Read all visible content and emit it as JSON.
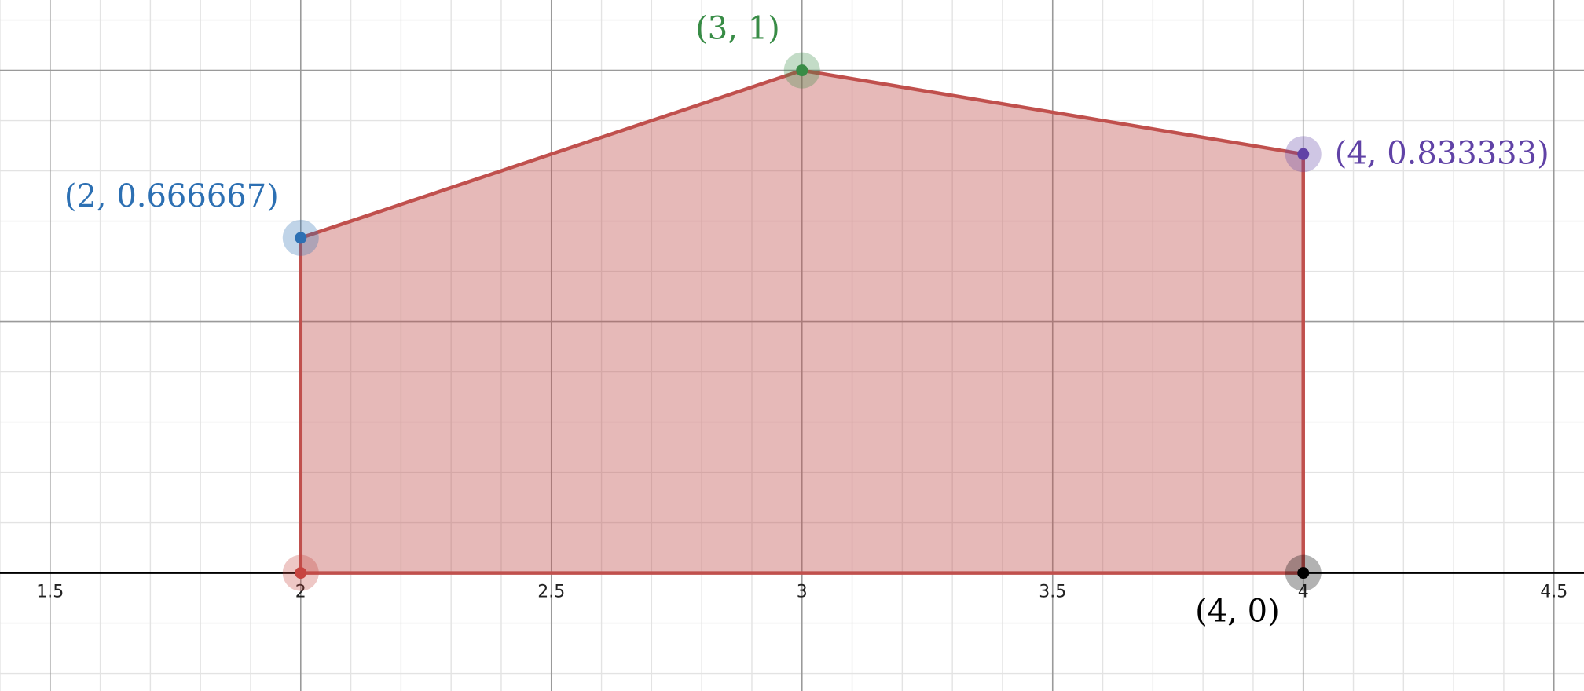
{
  "chart_data": {
    "type": "area",
    "title": "",
    "xlabel": "",
    "ylabel": "",
    "xlim": [
      1.4,
      4.56
    ],
    "ylim": [
      -0.235,
      1.14
    ],
    "grid": true,
    "x_major_ticks": [
      1.5,
      2,
      2.5,
      3,
      3.5,
      4,
      4.5
    ],
    "x_tick_labels": [
      "1.5",
      "2",
      "2.5",
      "3",
      "3.5",
      "4",
      "4.5"
    ],
    "y_major_gridlines": [
      0.5,
      1
    ],
    "minor_step_x": 0.1,
    "minor_step_y": 0.1,
    "polygon": {
      "vertices": [
        [
          2,
          0
        ],
        [
          2,
          0.666667
        ],
        [
          3,
          1
        ],
        [
          4,
          0.833333
        ],
        [
          4,
          0
        ]
      ],
      "stroke_color": "#c0504d",
      "fill_color": "#c0504d"
    },
    "points": [
      {
        "x": 2,
        "y": 0.666667,
        "label": "(2, 0.666667)",
        "color": "#2d70b3",
        "label_pos": "above-left"
      },
      {
        "x": 3,
        "y": 1,
        "label": "(3, 1)",
        "color": "#388c46",
        "label_pos": "above-left"
      },
      {
        "x": 4,
        "y": 0.833333,
        "label": "(4, 0.833333)",
        "color": "#6042a6",
        "label_pos": "right"
      },
      {
        "x": 4,
        "y": 0,
        "label": "(4, 0)",
        "color": "#000000",
        "label_pos": "below-left"
      },
      {
        "x": 2,
        "y": 0,
        "label": "",
        "color": "#c74440",
        "label_pos": "none"
      }
    ]
  }
}
